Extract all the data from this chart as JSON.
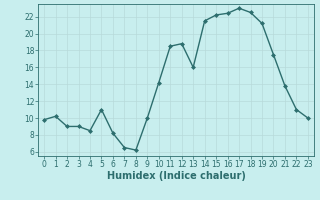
{
  "x": [
    0,
    1,
    2,
    3,
    4,
    5,
    6,
    7,
    8,
    9,
    10,
    11,
    12,
    13,
    14,
    15,
    16,
    17,
    18,
    19,
    20,
    21,
    22,
    23
  ],
  "y": [
    9.8,
    10.2,
    9.0,
    9.0,
    8.5,
    11.0,
    8.2,
    6.5,
    6.2,
    10.0,
    14.2,
    18.5,
    18.8,
    16.0,
    21.5,
    22.2,
    22.4,
    23.0,
    22.5,
    21.2,
    17.5,
    13.8,
    11.0,
    10.0
  ],
  "xlabel": "Humidex (Indice chaleur)",
  "xlim": [
    -0.5,
    23.5
  ],
  "ylim": [
    5.5,
    23.5
  ],
  "yticks": [
    6,
    8,
    10,
    12,
    14,
    16,
    18,
    20,
    22
  ],
  "xticks": [
    0,
    1,
    2,
    3,
    4,
    5,
    6,
    7,
    8,
    9,
    10,
    11,
    12,
    13,
    14,
    15,
    16,
    17,
    18,
    19,
    20,
    21,
    22,
    23
  ],
  "line_color": "#2d6e6e",
  "marker": "D",
  "marker_size": 2.0,
  "bg_color": "#c8eeee",
  "grid_color": "#b8dada",
  "tick_fontsize": 5.5,
  "xlabel_fontsize": 7.0,
  "line_width": 1.0
}
